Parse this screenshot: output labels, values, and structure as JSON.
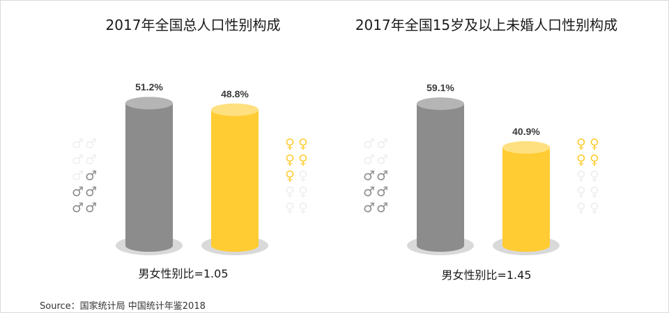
{
  "source": "Source：国家统计局 中国统计年鉴2018",
  "colors": {
    "male": "#8c8c8c",
    "male_top": "#b5b5b5",
    "female": "#ffcc33",
    "female_top": "#ffe080",
    "shadow": "#d9d9d9",
    "icon_faded": "#eeeeee"
  },
  "icons": {
    "male": "male-symbol-icon",
    "female": "female-symbol-icon"
  },
  "chart_data": [
    {
      "type": "bar",
      "title": "2017年全国总人口性别构成",
      "categories": [
        "男",
        "女"
      ],
      "values": [
        51.2,
        48.8
      ],
      "value_labels": [
        "51.2%",
        "48.8%"
      ],
      "ratio_label": "男女性别比=1.05",
      "ylim": [
        0,
        60
      ],
      "grid": false,
      "legend": "none"
    },
    {
      "type": "bar",
      "title": "2017年全国15岁及以上未婚人口性别构成",
      "categories": [
        "男",
        "女"
      ],
      "values": [
        59.1,
        40.9
      ],
      "value_labels": [
        "59.1%",
        "40.9%"
      ],
      "ratio_label": "男女性别比=1.45",
      "ylim": [
        0,
        60
      ],
      "grid": false,
      "legend": "none"
    }
  ]
}
